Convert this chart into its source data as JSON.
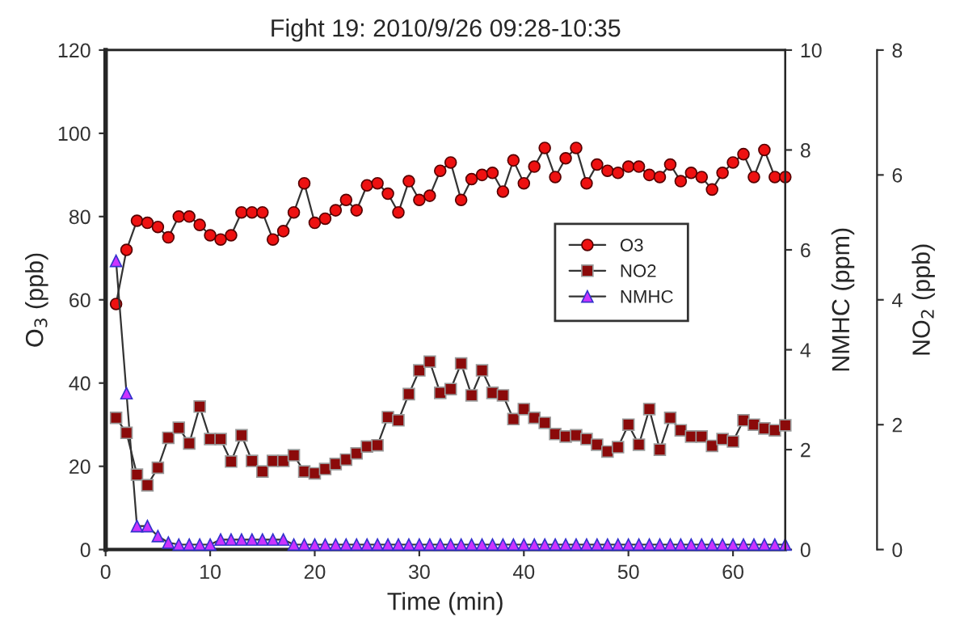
{
  "chart_data": {
    "type": "line",
    "title": "Fight 19: 2010/9/26 09:28-10:35",
    "xlabel": "Time (min)",
    "ylabel": "O$_{3}$ (ppb)",
    "y2label": "NMHC (ppm)",
    "y3label": "NO$_{2}$ (ppb)",
    "x": [
      1,
      2,
      3,
      4,
      5,
      6,
      7,
      8,
      9,
      10,
      11,
      12,
      13,
      14,
      15,
      16,
      17,
      18,
      19,
      20,
      21,
      22,
      23,
      24,
      25,
      26,
      27,
      28,
      29,
      30,
      31,
      32,
      33,
      34,
      35,
      36,
      37,
      38,
      39,
      40,
      41,
      42,
      43,
      44,
      45,
      46,
      47,
      48,
      49,
      50,
      51,
      52,
      53,
      54,
      55,
      56,
      57,
      58,
      59,
      60,
      61,
      62,
      63,
      64,
      65
    ],
    "xlim": [
      0,
      65
    ],
    "xticks": [
      0,
      10,
      20,
      30,
      40,
      50,
      60
    ],
    "ylim": [
      0,
      120
    ],
    "yticks": [
      0,
      20,
      40,
      60,
      80,
      100,
      120
    ],
    "y2lim": [
      0,
      10
    ],
    "y2ticks": [
      0,
      2,
      4,
      6,
      8,
      10
    ],
    "y3lim": [
      0,
      8
    ],
    "y3ticks": [
      0,
      2,
      4,
      6,
      8
    ],
    "line_style": "solid",
    "legend": "center right",
    "grid": false,
    "series": [
      {
        "name": "O3",
        "color": "#ee1111",
        "marker": "circle",
        "values": [
          59,
          72,
          79,
          78.5,
          77.5,
          75,
          80,
          80,
          78,
          75.5,
          74.5,
          75.5,
          81,
          81,
          81,
          74.5,
          76.5,
          81,
          88,
          78.5,
          79.5,
          81.5,
          84,
          81.5,
          87.5,
          88,
          85.5,
          81,
          88.5,
          84,
          85,
          91,
          93,
          84,
          89,
          90,
          90.5,
          86,
          93.5,
          88,
          92,
          96.5,
          89.5,
          94,
          96.5,
          88,
          92.5,
          91,
          90.5,
          92,
          92,
          90,
          89.5,
          92.5,
          88.5,
          90.5,
          89.5,
          86.5,
          90.5,
          93,
          95,
          89.5,
          96,
          89.5,
          89.5
        ]
      },
      {
        "name": "NO2",
        "color": "#8b0a0a",
        "marker": "square",
        "axis": "y3",
        "values": [
          2.11,
          1.87,
          1.2,
          1.03,
          1.31,
          1.79,
          1.95,
          1.7,
          2.29,
          1.77,
          1.77,
          1.41,
          1.83,
          1.42,
          1.25,
          1.42,
          1.42,
          1.51,
          1.25,
          1.22,
          1.29,
          1.37,
          1.44,
          1.54,
          1.65,
          1.67,
          2.12,
          2.07,
          2.49,
          2.87,
          3.01,
          2.51,
          2.57,
          2.98,
          2.47,
          2.87,
          2.51,
          2.47,
          2.09,
          2.25,
          2.11,
          2.03,
          1.85,
          1.81,
          1.83,
          1.77,
          1.68,
          1.57,
          1.64,
          2.0,
          1.68,
          2.25,
          1.6,
          2.11,
          1.91,
          1.81,
          1.81,
          1.66,
          1.77,
          1.73,
          2.07,
          2.0,
          1.94,
          1.91,
          1.99
        ]
      },
      {
        "name": "NMHC",
        "color": "#cc33ff",
        "marker": "triangle",
        "axis": "y2",
        "values": [
          5.78,
          3.13,
          0.47,
          0.47,
          0.27,
          0.14,
          0.1,
          0.1,
          0.1,
          0.1,
          0.2,
          0.2,
          0.2,
          0.2,
          0.2,
          0.2,
          0.2,
          0.1,
          0.1,
          0.1,
          0.1,
          0.1,
          0.1,
          0.1,
          0.1,
          0.1,
          0.1,
          0.1,
          0.1,
          0.1,
          0.1,
          0.1,
          0.1,
          0.1,
          0.1,
          0.1,
          0.1,
          0.1,
          0.1,
          0.1,
          0.1,
          0.1,
          0.1,
          0.1,
          0.1,
          0.1,
          0.1,
          0.1,
          0.1,
          0.1,
          0.1,
          0.1,
          0.1,
          0.1,
          0.1,
          0.1,
          0.1,
          0.1,
          0.1,
          0.1,
          0.1,
          0.1,
          0.1,
          0.1,
          0.1
        ]
      }
    ]
  }
}
